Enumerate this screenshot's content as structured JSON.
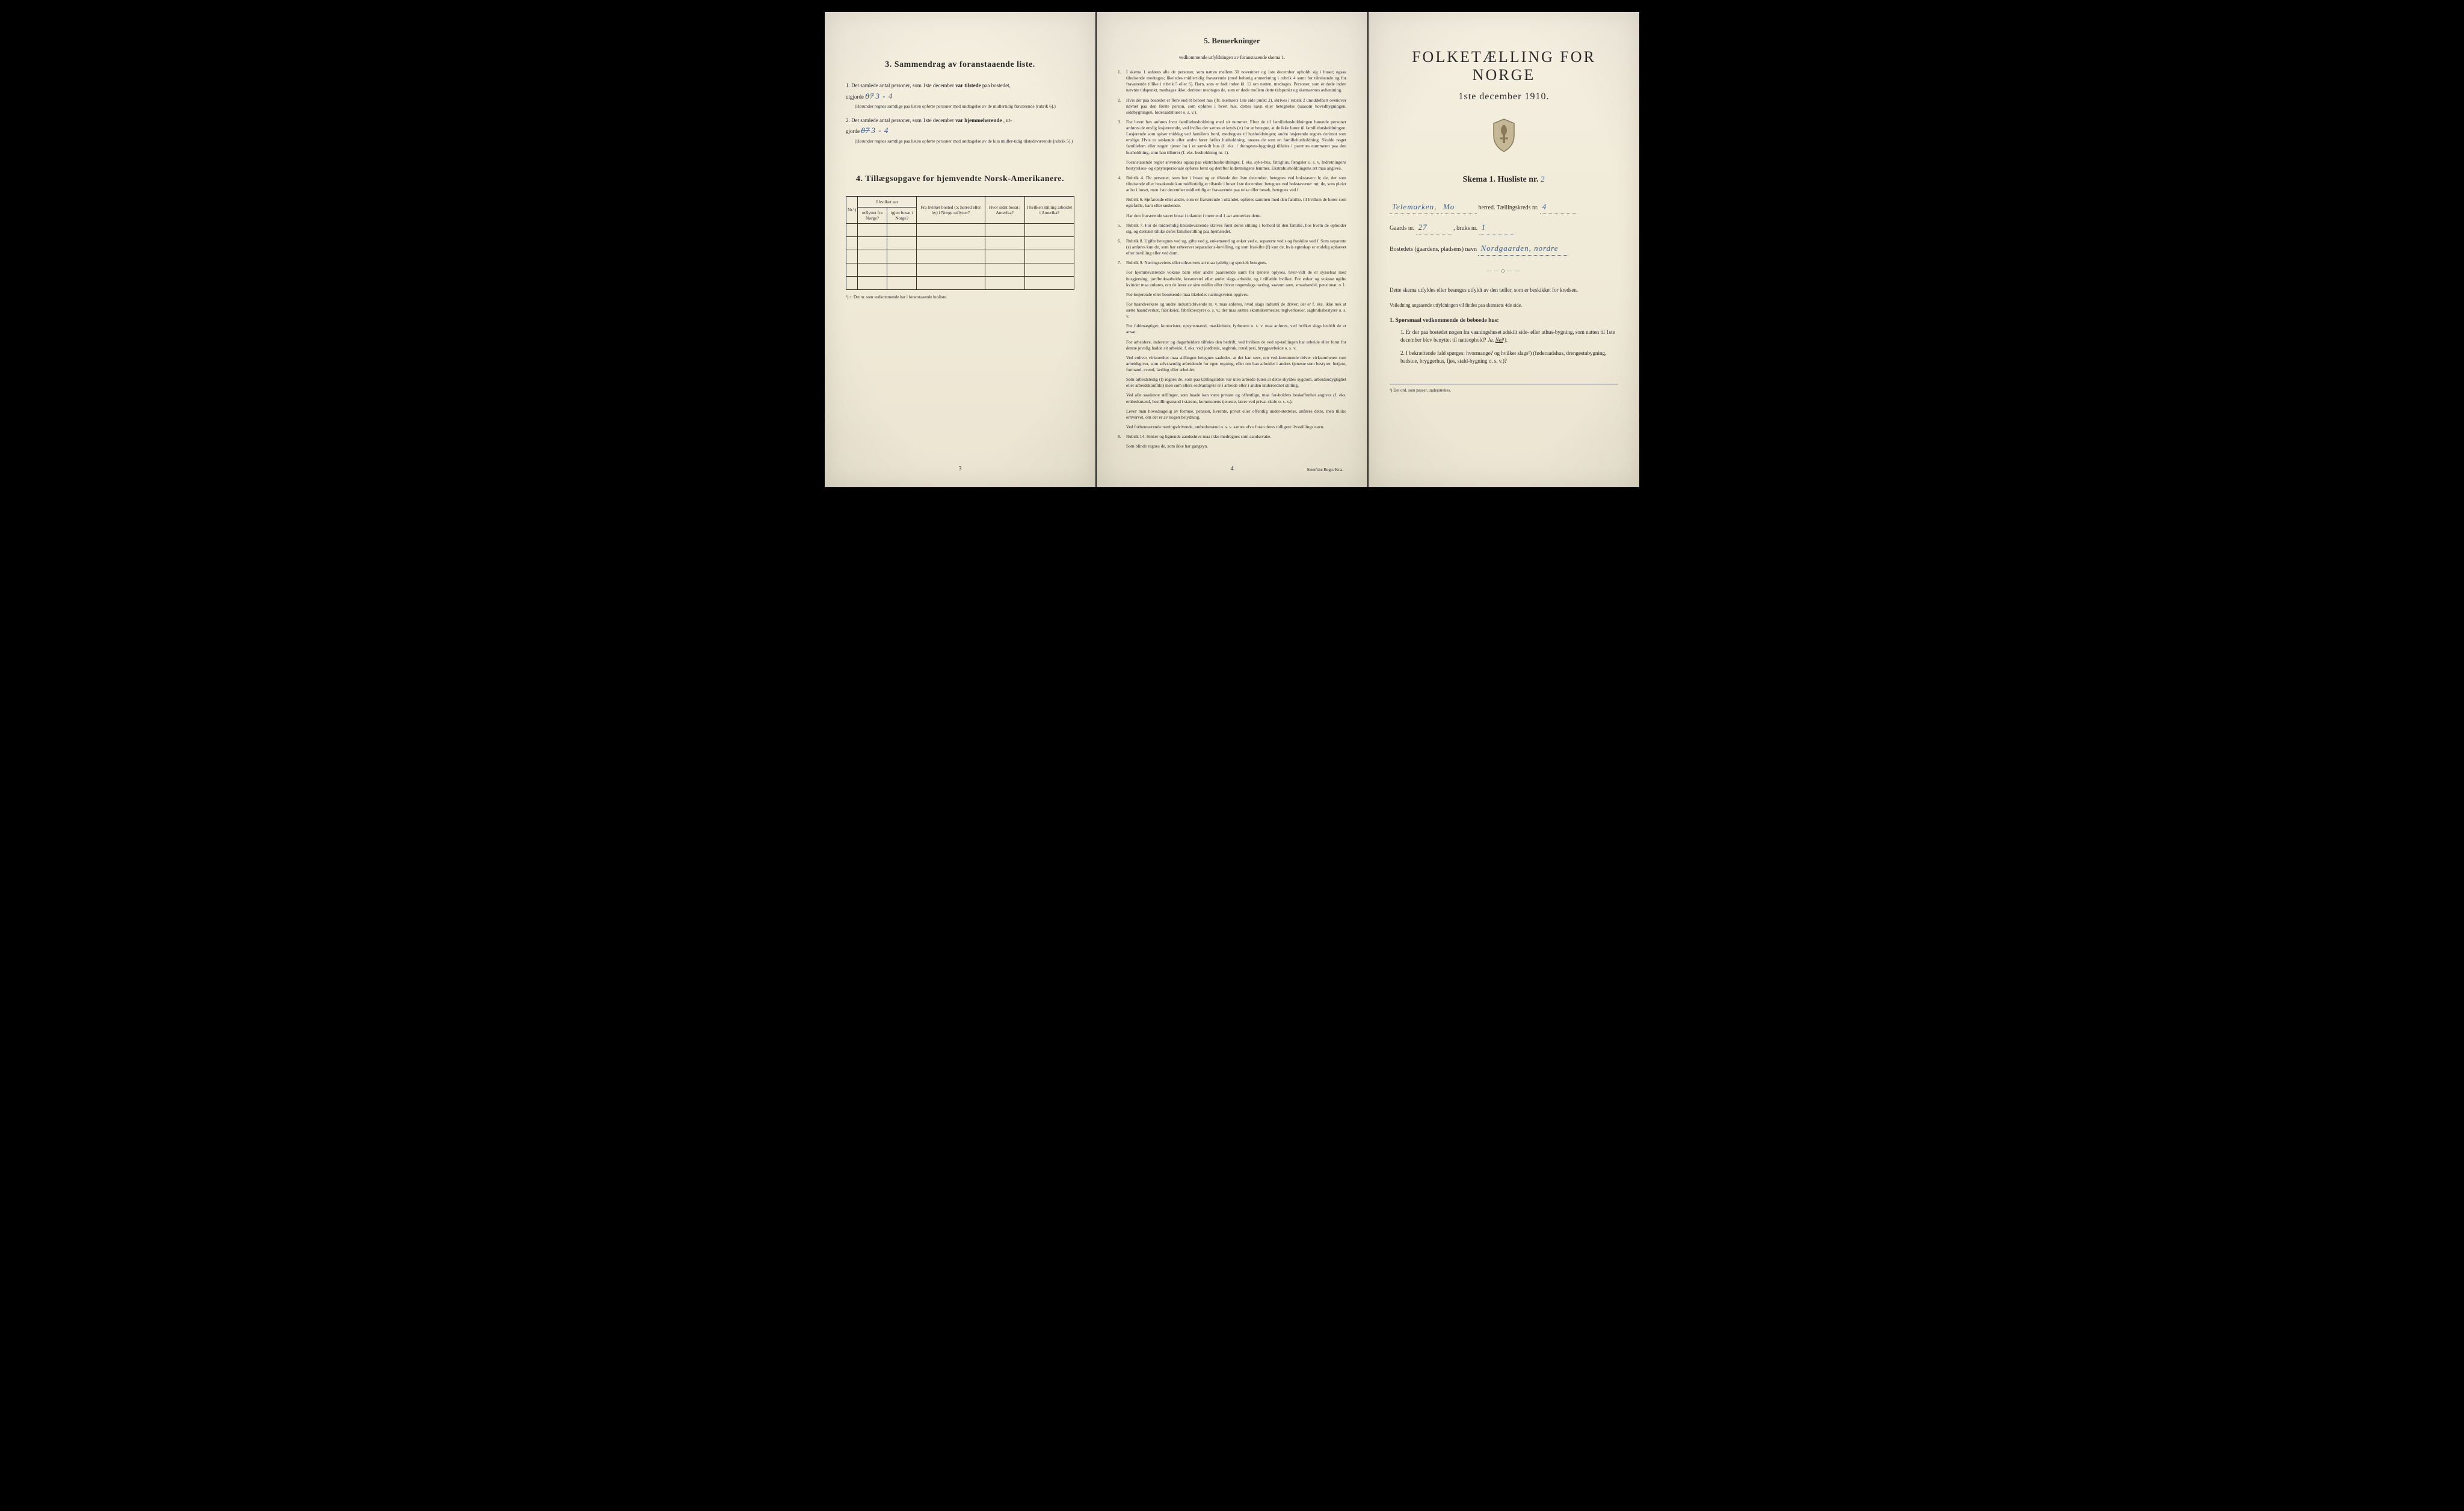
{
  "colors": {
    "paper": "#f0ead8",
    "ink": "#2a2a2a",
    "handwriting": "#3a5a8a",
    "background": "#000000"
  },
  "page_left": {
    "number": "3",
    "section3": {
      "heading": "3.   Sammendrag av foranstaaende liste.",
      "item1_prefix": "1.  Det samlede antal personer, som 1ste december",
      "item1_bold": "var tilstede",
      "item1_suffix": "paa bostedet,",
      "item1_line2a": "utgjorde",
      "item1_hand_struck": "87",
      "item1_hand": "3 - 4",
      "item1_note": "(Herunder regnes samtlige paa listen opførte personer med undtagelse av de midlertidig fraværende [rubrik 6].)",
      "item2_prefix": "2.  Det samlede antal personer, som 1ste december",
      "item2_bold": "var hjemmehørende",
      "item2_suffix": ", ut-",
      "item2_line2a": "gjorde",
      "item2_hand_struck": "87",
      "item2_hand": "3 - 4",
      "item2_note": "(Herunder regnes samtlige paa listen opførte personer med undtagelse av de kun midler-tidig tilstedeværende [rubrik 5].)"
    },
    "section4": {
      "heading": "4.   Tillægsopgave for hjemvendte Norsk-Amerikanere.",
      "table": {
        "col1": "Nr.¹)",
        "col2_top": "I hvilket aar",
        "col2a": "utflyttet fra Norge?",
        "col2b": "igjen bosat i Norge?",
        "col3": "Fra hvilket bosted (ɔ: herred eller by) i Norge utflyttet?",
        "col4": "Hvor sidst bosat i Amerika?",
        "col5": "I hvilken stilling arbeidet i Amerika?",
        "blank_rows": 5
      },
      "footnote": "¹) ɔ: Det nr. som vedkommende har i foranstaaende husliste."
    }
  },
  "page_middle": {
    "number": "4",
    "heading": "5.   Bemerkninger",
    "sub": "vedkommende utfyldningen av foranstaaende skema 1.",
    "items": [
      {
        "n": "1.",
        "t": "I skema 1 anføres alle de personer, som natten mellem 30 november og 1ste december opholdt sig i huset; ogsaa tilreisende medtages; likeledes midlertidig fraværende (med behørig anmerkning i rubrik 4 samt for tilreisende og for fraværende tillike i rubrik 5 eller 6). Barn, som er født inden kl. 12 om natten, medtages. Personer, som er døde inden nævnte tidspunkt, medtages ikke; derimot medtages de, som er døde mellem dette tidspunkt og skemaernes avhentning."
      },
      {
        "n": "2.",
        "t": "Hvis der paa bostedet er flere end ét beboet hus (jfr. skemaets 1ste side punkt 2), skrives i rubrik 2 umiddelbart ovenover navnet paa den første person, som opføres i hvert hus, dettes navn eller betegnelse (saasom hovedbygningen, sidebygningen, føderaadshuset o. s. v.)."
      },
      {
        "n": "3.",
        "t": "For hvert hus anføres hver familiehusholdning med sit nummer. Efter de til familiehusholdningen hørende personer anføres de enslig losjererende, ved hvilke der sættes et kryds (×) for at betegne, at de ikke hører til familiehusholdningen. Losjerende som spiser middag ved familiens bord, medregnes til husholdningen; andre losjerende regnes derimot som enslige. Hvis to søskende eller andre fører fælles husholdning, ansees de som en familiehusholdning. Skulde noget familielem eller nogen tjener bo i et særskilt hus (f. eks. i drengestu-bygning) tilføies i parentes nummeret paa den husholdning, som han tilhører (f. eks. husholdning nr. 1)."
      },
      {
        "n": "",
        "t": "Foranstaaende regler anvendes ogsaa paa ekstrahusholdninger, f. eks. syke-hus, fattighus, fængsler o. s. v. Indretningens bestyrelses- og opsynspersonale opføres først og derefter indretningens lemmer. Ekstrahusholdningens art maa angives."
      },
      {
        "n": "4.",
        "t": "Rubrik 4. De personer, som bor i huset og er tilstede der 1ste december, betegnes ved bokstaven: b; de, der som tilreisende eller besøkende kun midlertidig er tilstede i huset 1ste december, betegnes ved bokstaverne: mt; de, som pleier at bo i huset, men 1ste december midlertidig er fraværende paa reise eller besøk, betegnes ved f."
      },
      {
        "n": "",
        "t": "Rubrik 6. Sjøfarende eller andre, som er fraværende i utlandet, opføres sammen med den familie, til hvilken de hører som egtefælle, barn eller søskende."
      },
      {
        "n": "",
        "t": "Har den fraværende været bosat i utlandet i mere end 1 aar anmerkes dette."
      },
      {
        "n": "5.",
        "t": "Rubrik 7. For de midlertidig tilstedeværende skrives først deres stilling i forhold til den familie, hos hvem de opholder sig, og dernæst tillike deres familiestilling paa hjemstedet."
      },
      {
        "n": "6.",
        "t": "Rubrik 8. Ugifte betegnes ved ug, gifte ved g, enkemænd og enker ved e, separerte ved s og fraskilte ved f. Som separerte (s) anføres kun de, som har erhvervet separations-bevilling, og som fraskilte (f) kun de, hvis egteskap er endelig ophævet efter bevilling eller ved dom."
      },
      {
        "n": "7.",
        "t": "Rubrik 9. Næringsveiens eller erhvervets art maa tydelig og specielt betegnes."
      },
      {
        "n": "",
        "t": "For hjemmeværende voksne barn eller andre paarørende samt for tjenere oplyses, hvor-vidt de er sysselsat med husgjerning, jordbruksarbeide, kreaturstel eller andet slags arbeide, og i tilfælde hvilket. For enker og voksne ugifte kvinder maa anføres, om de lever av sine midler eller driver nogenslags næring, saasom søm, smaahandel, pensionat, o. l."
      },
      {
        "n": "",
        "t": "For losjerende eller besøkende maa likeledes næringsveien opgives."
      },
      {
        "n": "",
        "t": "For haandverkere og andre industridrivende m. v. maa anføres, hvad slags industri de driver; det er f. eks. ikke nok at sætte haandverker, fabrikeier, fabrikbestyrer o. s. v.; der maa sættes skomakermester, teglverkseier, sagbruksbestyrer o. s. v."
      },
      {
        "n": "",
        "t": "For fuldmægtiger, kontorister, opsynsmænd, maskinister, fyrbøtere o. s. v. maa anføres, ved hvilket slags bedrift de er ansat."
      },
      {
        "n": "",
        "t": "For arbeidere, inderster og dagarbeidere tilføies den bedrift, ved hvilken de ved op-tællingen har arbeide eller forut for denne jevnlig hadde sit arbeide, f. eks. ved jordbruk, sagbruk, træsliperi, bryggearbeide o. s. v."
      },
      {
        "n": "",
        "t": "Ved enhver virksomhet maa stillingen betegnes saaledes, at det kan sees, om ved-kommende driver virksomheten som arbeidsgiver, som selvstændig arbeidende for egen regning, eller om han arbeider i andres tjeneste som bestyrer, betjent, formand, svend, lærling eller arbeider."
      },
      {
        "n": "",
        "t": "Som arbeidsledig (l) regnes de, som paa tællingstiden var uten arbeide (uten at dette skyldes sygdom, arbeidsudygtighet eller arbeidskonflikt) men som ellers sedvanligvis er i arbeide eller i anden underordnet stilling."
      },
      {
        "n": "",
        "t": "Ved alle saadanne stillinger, som baade kan være private og offentlige, maa for-holdets beskaffenhet angives (f. eks. embedsmand, bestillingsmand i statens, kommunens tjeneste, lærer ved privat skole o. s. v.)."
      },
      {
        "n": "",
        "t": "Lever man hovedsagelig av formue, pension, livrente, privat eller offentlig under-støttelse, anføres dette, men tillike erhvervet, om det er av nogen betydning."
      },
      {
        "n": "",
        "t": "Ved forhenværende næringsdrivende, embedsmænd o. s. v. sættes «fv» foran deres tidligere livsstillings navn."
      },
      {
        "n": "8.",
        "t": "Rubrik 14. Sinker og lignende aandssløve maa ikke medregnes som aandssvake."
      },
      {
        "n": "",
        "t": "Som blinde regnes de, som ikke har gangsyn."
      }
    ],
    "imprint": "Steen'ske Bogtr.  Kr.a."
  },
  "page_right": {
    "title": "FOLKETÆLLING FOR NORGE",
    "date": "1ste december 1910.",
    "skema_label": "Skema 1.  Husliste nr.",
    "skema_hand": "2",
    "line1_hand1": "Telemarken,",
    "line1_hand2": "Mo",
    "line1_text": "herred.  Tællingskreds nr.",
    "line1_hand3": "4",
    "line2_text1": "Gaards nr.",
    "line2_hand1": "27",
    "line2_text2": ",  bruks nr.",
    "line2_hand2": "1",
    "line3_text": "Bostedets (gaardens, pladsens) navn",
    "line3_hand": "Nordgaarden, nordre",
    "body1": "Dette skema utfyldes eller besørges utfyldt av den tæller, som er beskikket for kredsen.",
    "body2": "Veiledning angaaende utfyldningen vil findes paa skemaets 4de side.",
    "q_heading": "1.  Spørsmaal vedkommende de beboede hus:",
    "q1": "1.  Er der paa bostedet nogen fra vaaningshuset adskilt side- eller uthus-bygning, som natten til 1ste december blev benyttet til natteophold?",
    "q1_ja": "Ja.",
    "q1_nei": "Nei",
    "q1_sup": "¹).",
    "q2": "2.  I bekræftende fald spørges: hvormange?           og hvilket slags¹) (føderaadshus, drengestubygning, badstue, bryggerhus, fjøs, stald-bygning o. s. v.)?",
    "footnote": "¹) Det ord, som passer, understrekes."
  }
}
